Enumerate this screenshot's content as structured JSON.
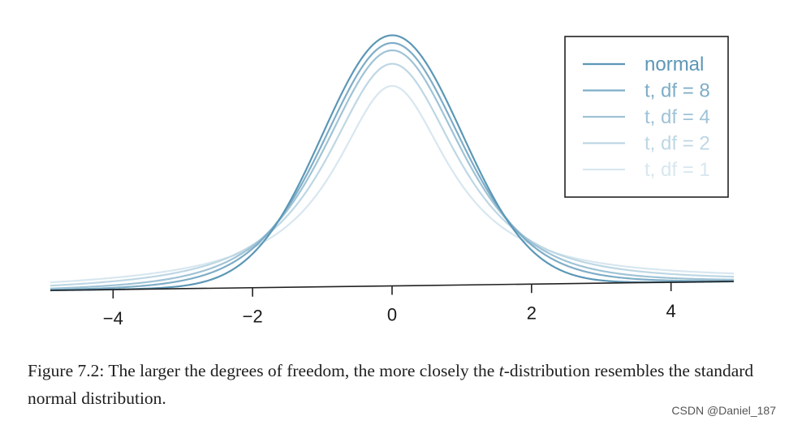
{
  "chart_data": {
    "type": "line",
    "xlim": [
      -4.9,
      4.9
    ],
    "ylim": [
      0,
      0.4
    ],
    "xticks": [
      -4,
      -2,
      0,
      2,
      4
    ],
    "xtick_labels": [
      "−4",
      "−2",
      "0",
      "2",
      "4"
    ],
    "grid": false,
    "legend_position": "top-right",
    "series": [
      {
        "name": "normal",
        "dist": "normal",
        "color": "#5c97b6"
      },
      {
        "name": "t, df = 8",
        "dist": "t",
        "df": 8,
        "color": "#7eadc7"
      },
      {
        "name": "t, df = 4",
        "dist": "t",
        "df": 4,
        "color": "#9fc3d6"
      },
      {
        "name": "t, df = 2",
        "dist": "t",
        "df": 2,
        "color": "#bed7e4"
      },
      {
        "name": "t, df = 1",
        "dist": "t",
        "df": 1,
        "color": "#d8e7ef"
      }
    ]
  },
  "caption": {
    "prefix": "Figure 7.2: The larger the degrees of freedom, the more closely the ",
    "italic": "t",
    "suffix": "-distribution resembles the standard normal distribution."
  },
  "watermark": "CSDN @Daniel_187"
}
